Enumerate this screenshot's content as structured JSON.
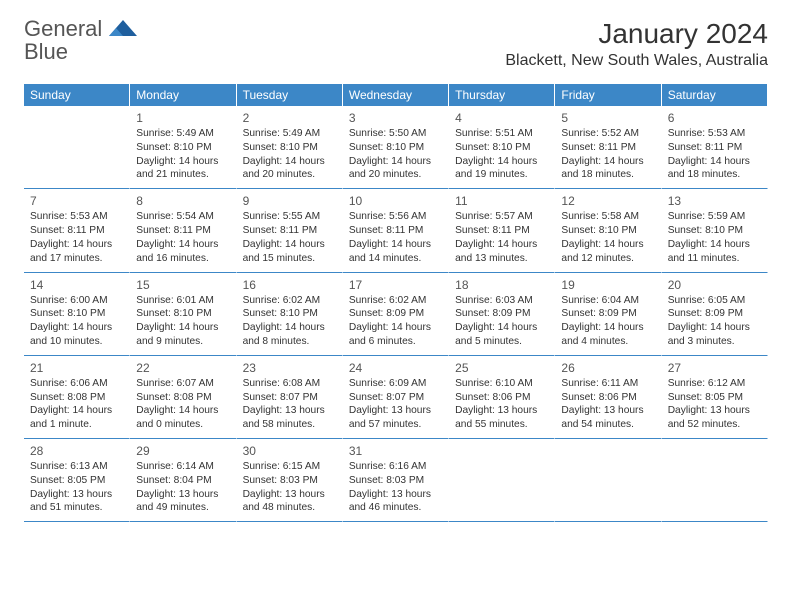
{
  "logo": {
    "text1": "General",
    "text2": "Blue"
  },
  "title": "January 2024",
  "location": "Blackett, New South Wales, Australia",
  "colors": {
    "accent": "#3c87c7",
    "bg": "#ffffff",
    "text": "#333333"
  },
  "dayHeaders": [
    "Sunday",
    "Monday",
    "Tuesday",
    "Wednesday",
    "Thursday",
    "Friday",
    "Saturday"
  ],
  "startOffset": 1,
  "days": [
    {
      "n": 1,
      "sr": "5:49 AM",
      "ss": "8:10 PM",
      "dl": "14 hours and 21 minutes."
    },
    {
      "n": 2,
      "sr": "5:49 AM",
      "ss": "8:10 PM",
      "dl": "14 hours and 20 minutes."
    },
    {
      "n": 3,
      "sr": "5:50 AM",
      "ss": "8:10 PM",
      "dl": "14 hours and 20 minutes."
    },
    {
      "n": 4,
      "sr": "5:51 AM",
      "ss": "8:10 PM",
      "dl": "14 hours and 19 minutes."
    },
    {
      "n": 5,
      "sr": "5:52 AM",
      "ss": "8:11 PM",
      "dl": "14 hours and 18 minutes."
    },
    {
      "n": 6,
      "sr": "5:53 AM",
      "ss": "8:11 PM",
      "dl": "14 hours and 18 minutes."
    },
    {
      "n": 7,
      "sr": "5:53 AM",
      "ss": "8:11 PM",
      "dl": "14 hours and 17 minutes."
    },
    {
      "n": 8,
      "sr": "5:54 AM",
      "ss": "8:11 PM",
      "dl": "14 hours and 16 minutes."
    },
    {
      "n": 9,
      "sr": "5:55 AM",
      "ss": "8:11 PM",
      "dl": "14 hours and 15 minutes."
    },
    {
      "n": 10,
      "sr": "5:56 AM",
      "ss": "8:11 PM",
      "dl": "14 hours and 14 minutes."
    },
    {
      "n": 11,
      "sr": "5:57 AM",
      "ss": "8:11 PM",
      "dl": "14 hours and 13 minutes."
    },
    {
      "n": 12,
      "sr": "5:58 AM",
      "ss": "8:10 PM",
      "dl": "14 hours and 12 minutes."
    },
    {
      "n": 13,
      "sr": "5:59 AM",
      "ss": "8:10 PM",
      "dl": "14 hours and 11 minutes."
    },
    {
      "n": 14,
      "sr": "6:00 AM",
      "ss": "8:10 PM",
      "dl": "14 hours and 10 minutes."
    },
    {
      "n": 15,
      "sr": "6:01 AM",
      "ss": "8:10 PM",
      "dl": "14 hours and 9 minutes."
    },
    {
      "n": 16,
      "sr": "6:02 AM",
      "ss": "8:10 PM",
      "dl": "14 hours and 8 minutes."
    },
    {
      "n": 17,
      "sr": "6:02 AM",
      "ss": "8:09 PM",
      "dl": "14 hours and 6 minutes."
    },
    {
      "n": 18,
      "sr": "6:03 AM",
      "ss": "8:09 PM",
      "dl": "14 hours and 5 minutes."
    },
    {
      "n": 19,
      "sr": "6:04 AM",
      "ss": "8:09 PM",
      "dl": "14 hours and 4 minutes."
    },
    {
      "n": 20,
      "sr": "6:05 AM",
      "ss": "8:09 PM",
      "dl": "14 hours and 3 minutes."
    },
    {
      "n": 21,
      "sr": "6:06 AM",
      "ss": "8:08 PM",
      "dl": "14 hours and 1 minute."
    },
    {
      "n": 22,
      "sr": "6:07 AM",
      "ss": "8:08 PM",
      "dl": "14 hours and 0 minutes."
    },
    {
      "n": 23,
      "sr": "6:08 AM",
      "ss": "8:07 PM",
      "dl": "13 hours and 58 minutes."
    },
    {
      "n": 24,
      "sr": "6:09 AM",
      "ss": "8:07 PM",
      "dl": "13 hours and 57 minutes."
    },
    {
      "n": 25,
      "sr": "6:10 AM",
      "ss": "8:06 PM",
      "dl": "13 hours and 55 minutes."
    },
    {
      "n": 26,
      "sr": "6:11 AM",
      "ss": "8:06 PM",
      "dl": "13 hours and 54 minutes."
    },
    {
      "n": 27,
      "sr": "6:12 AM",
      "ss": "8:05 PM",
      "dl": "13 hours and 52 minutes."
    },
    {
      "n": 28,
      "sr": "6:13 AM",
      "ss": "8:05 PM",
      "dl": "13 hours and 51 minutes."
    },
    {
      "n": 29,
      "sr": "6:14 AM",
      "ss": "8:04 PM",
      "dl": "13 hours and 49 minutes."
    },
    {
      "n": 30,
      "sr": "6:15 AM",
      "ss": "8:03 PM",
      "dl": "13 hours and 48 minutes."
    },
    {
      "n": 31,
      "sr": "6:16 AM",
      "ss": "8:03 PM",
      "dl": "13 hours and 46 minutes."
    }
  ],
  "labels": {
    "sunrise": "Sunrise: ",
    "sunset": "Sunset: ",
    "daylight": "Daylight: "
  }
}
